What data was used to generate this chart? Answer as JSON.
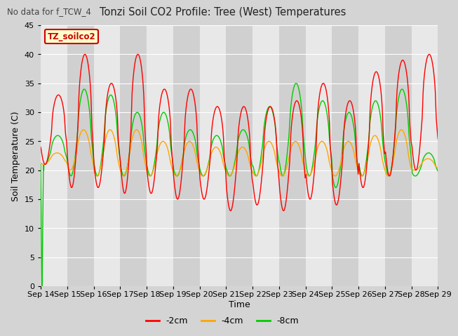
{
  "title": "Tonzi Soil CO2 Profile: Tree (West) Temperatures",
  "subtitle": "No data for f_TCW_4",
  "xlabel": "Time",
  "ylabel": "Soil Temperature (C)",
  "legend_label": "TZ_soilco2",
  "ylim": [
    0,
    45
  ],
  "yticks": [
    0,
    5,
    10,
    15,
    20,
    25,
    30,
    35,
    40,
    45
  ],
  "series_labels": [
    "-2cm",
    "-4cm",
    "-8cm"
  ],
  "series_colors": [
    "#ff0000",
    "#ffa500",
    "#00cc00"
  ],
  "line_width": 1.0,
  "fig_bg_color": "#d4d4d4",
  "plot_bg_light": "#e8e8e8",
  "plot_bg_dark": "#d0d0d0",
  "n_days": 15,
  "x_tick_labels": [
    "Sep 14",
    "Sep 15",
    "Sep 16",
    "Sep 17",
    "Sep 18",
    "Sep 19",
    "Sep 20",
    "Sep 21",
    "Sep 22",
    "Sep 23",
    "Sep 24",
    "Sep 25",
    "Sep 26",
    "Sep 27",
    "Sep 28",
    "Sep 29"
  ],
  "seed": 42
}
